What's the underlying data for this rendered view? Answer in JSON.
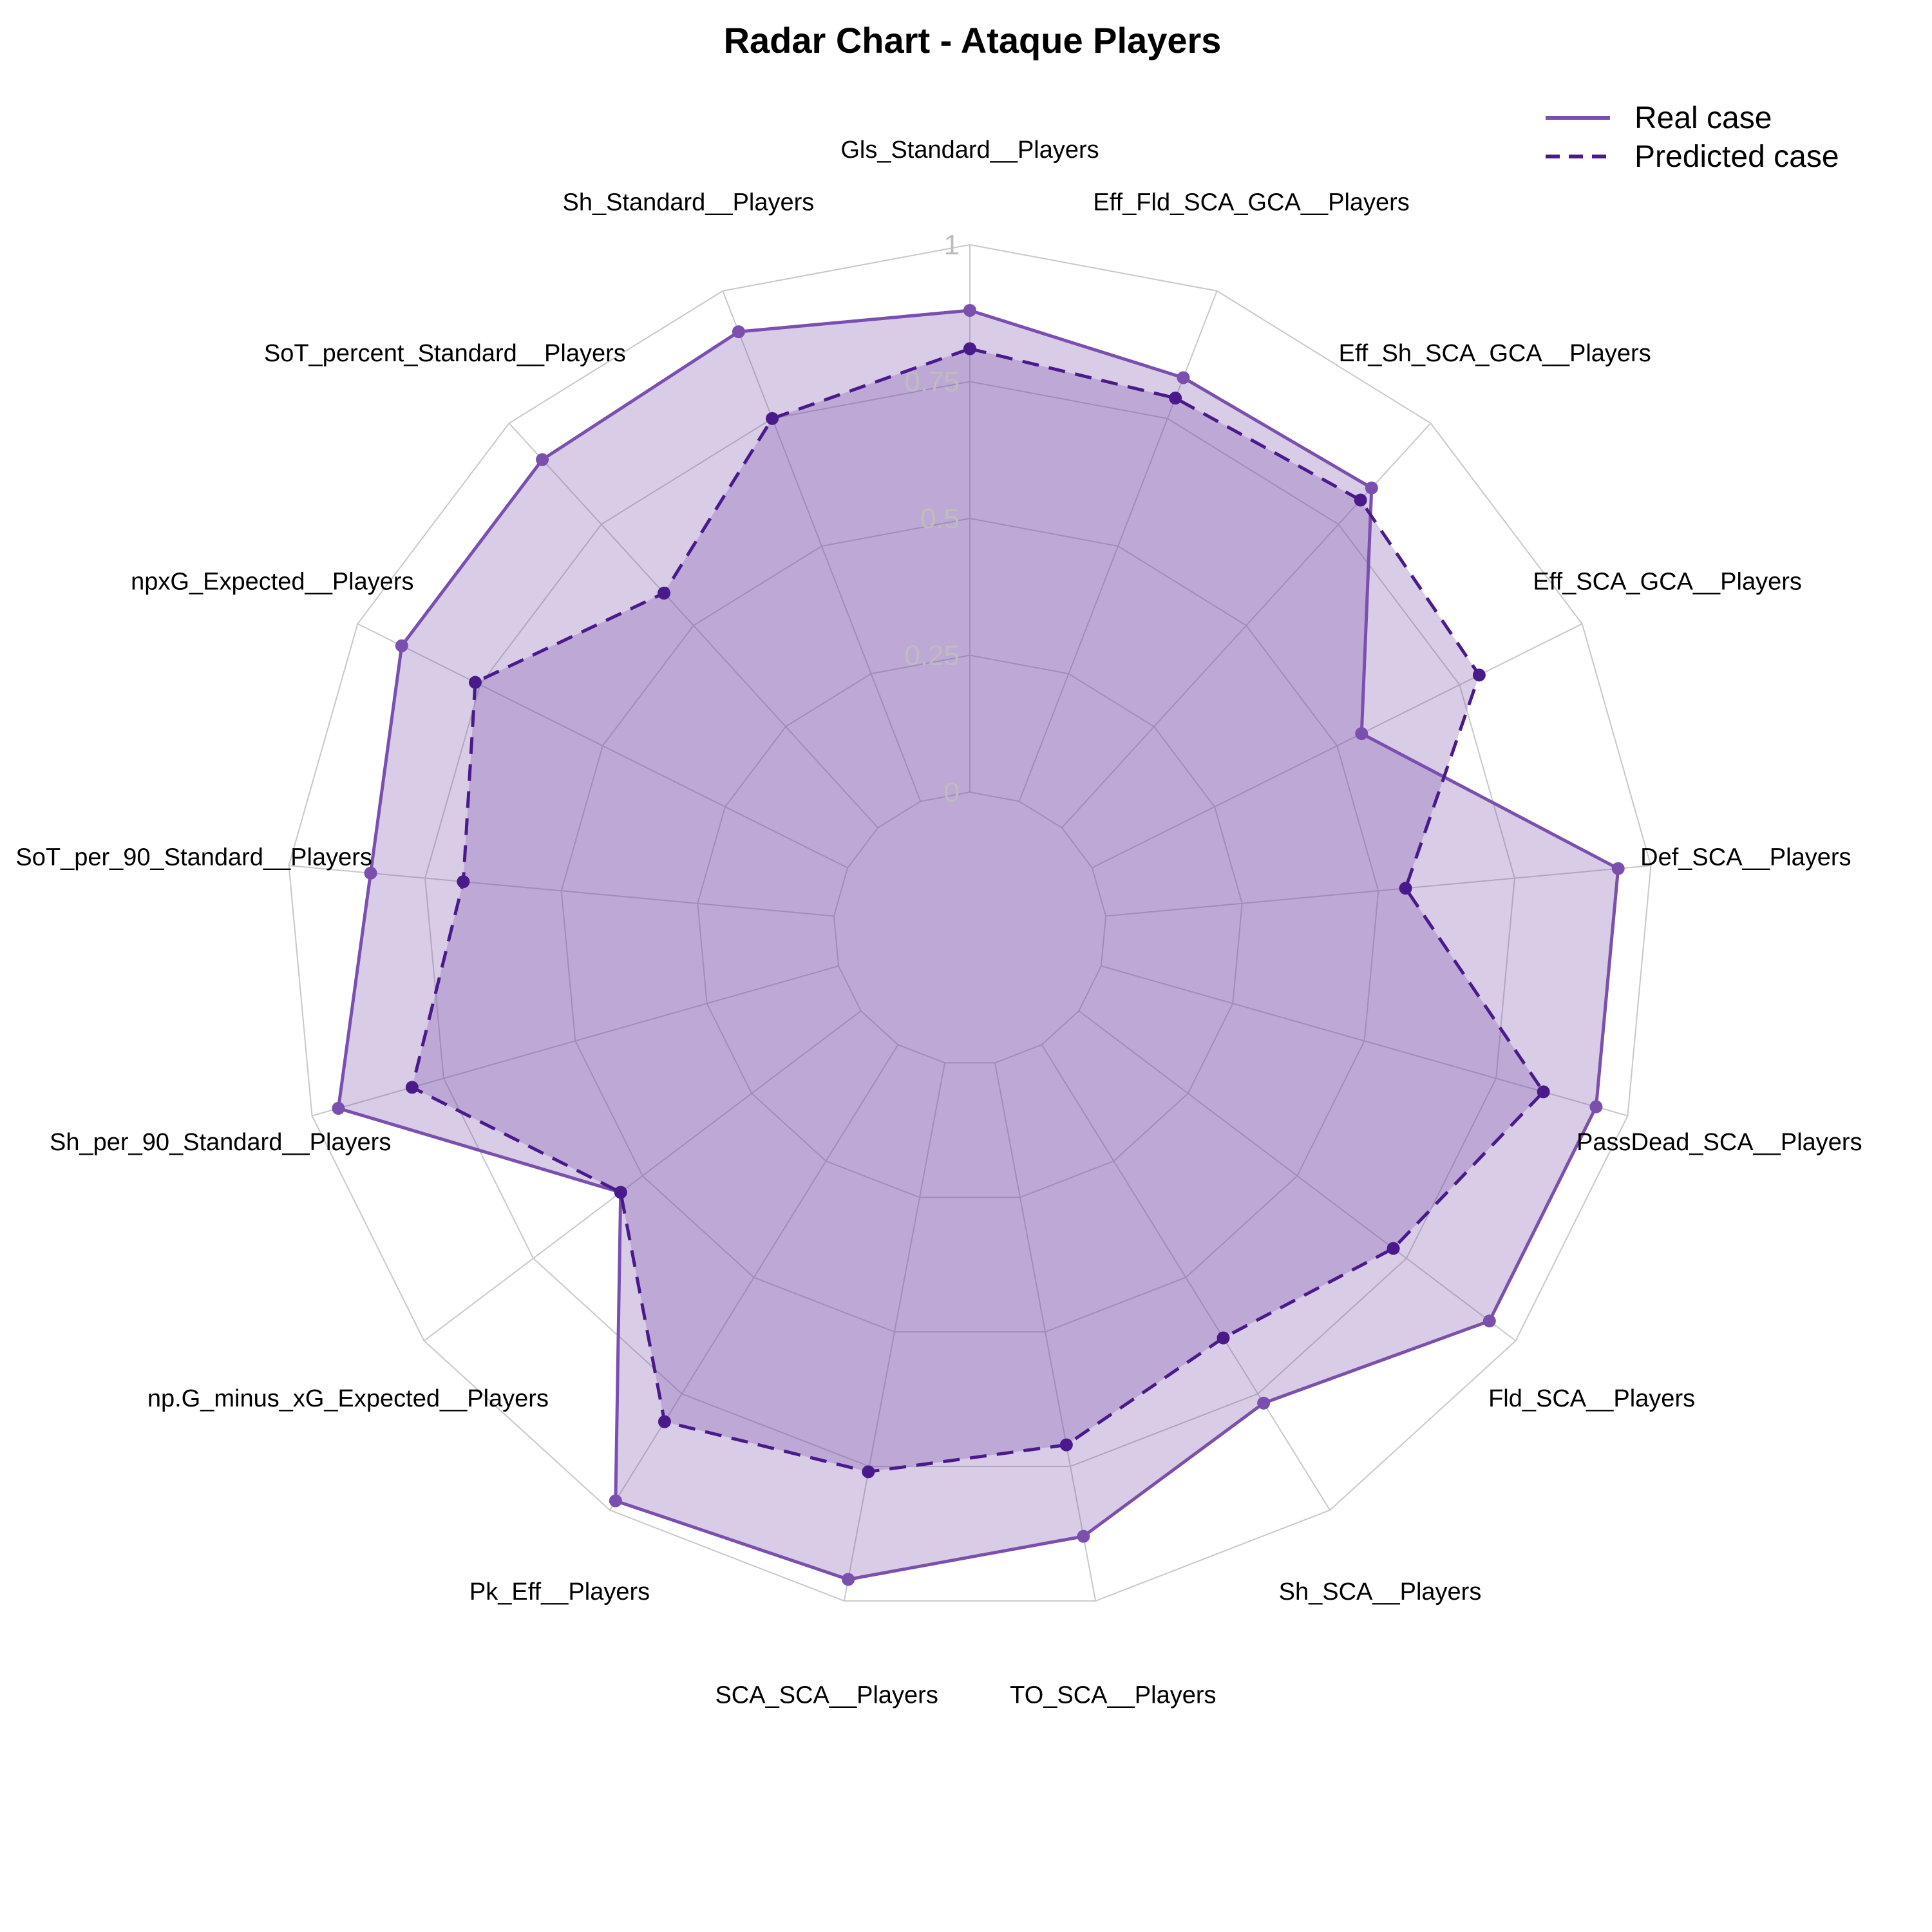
{
  "chart_data": {
    "type": "radar",
    "title": "Radar Chart - Ataque Players",
    "axes": [
      "Gls_Standard__Players",
      "Eff_Fld_SCA_GCA__Players",
      "Eff_Sh_SCA_GCA__Players",
      "Eff_SCA_GCA__Players",
      "Def_SCA__Players",
      "PassDead_SCA__Players",
      "Fld_SCA__Players",
      "Sh_SCA__Players",
      "TO_SCA__Players",
      "SCA_SCA__Players",
      "Pk_Eff__Players",
      "np.G_minus_xG_Expected__Players",
      "Sh_per_90_Standard__Players",
      "SoT_per_90_Standard__Players",
      "npxG_Expected__Players",
      "SoT_percent_Standard__Players",
      "Sh_Standard__Players"
    ],
    "tick_labels": [
      "0",
      "0.25",
      "0.5",
      "0.75",
      "1"
    ],
    "rlim": [
      0,
      1
    ],
    "series": [
      {
        "name": "Real case",
        "line": "solid",
        "color": "#7b4fae",
        "values": [
          0.88,
          0.83,
          0.84,
          0.55,
          0.94,
          0.94,
          0.94,
          0.77,
          0.88,
          0.96,
          0.98,
          0.55,
          0.95,
          0.85,
          0.91,
          0.91,
          0.92
        ]
      },
      {
        "name": "Predicted case",
        "line": "dashed",
        "color": "#4b1a8a",
        "values": [
          0.81,
          0.79,
          0.81,
          0.79,
          0.55,
          0.84,
          0.72,
          0.63,
          0.71,
          0.76,
          0.81,
          0.55,
          0.81,
          0.68,
          0.76,
          0.58,
          0.75
        ]
      }
    ],
    "fill_color": "#7e57b0",
    "grid_color": "#c8c8c8",
    "legend": "top-right"
  }
}
